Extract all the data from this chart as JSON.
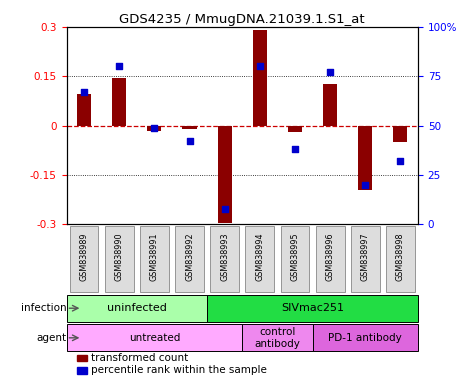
{
  "title": "GDS4235 / MmugDNA.21039.1.S1_at",
  "samples": [
    "GSM838989",
    "GSM838990",
    "GSM838991",
    "GSM838992",
    "GSM838993",
    "GSM838994",
    "GSM838995",
    "GSM838996",
    "GSM838997",
    "GSM838998"
  ],
  "transformed_count": [
    0.095,
    0.145,
    -0.015,
    -0.01,
    -0.295,
    0.29,
    -0.02,
    0.125,
    -0.195,
    -0.05
  ],
  "percentile_rank": [
    67,
    80,
    49,
    42,
    8,
    80,
    38,
    77,
    20,
    32
  ],
  "ylim": [
    -0.3,
    0.3
  ],
  "y2lim": [
    0,
    100
  ],
  "yticks": [
    -0.3,
    -0.15,
    0.0,
    0.15,
    0.3
  ],
  "y2ticks": [
    0,
    25,
    50,
    75,
    100
  ],
  "bar_color": "#8B0000",
  "dot_color": "#0000CC",
  "bar_width": 0.4,
  "infection_groups": [
    {
      "label": "uninfected",
      "start": 0,
      "end": 4,
      "color": "#AAFFAA"
    },
    {
      "label": "SIVmac251",
      "start": 4,
      "end": 10,
      "color": "#22DD44"
    }
  ],
  "agent_groups": [
    {
      "label": "untreated",
      "start": 0,
      "end": 5,
      "color": "#FFAAFF"
    },
    {
      "label": "control\nantibody",
      "start": 5,
      "end": 7,
      "color": "#EE88EE"
    },
    {
      "label": "PD-1 antibody",
      "start": 7,
      "end": 10,
      "color": "#DD66DD"
    }
  ],
  "legend_items": [
    {
      "label": "transformed count",
      "color": "#8B0000"
    },
    {
      "label": "percentile rank within the sample",
      "color": "#0000CC"
    }
  ],
  "sample_box_color": "#DDDDDD",
  "sample_box_edge": "#888888"
}
